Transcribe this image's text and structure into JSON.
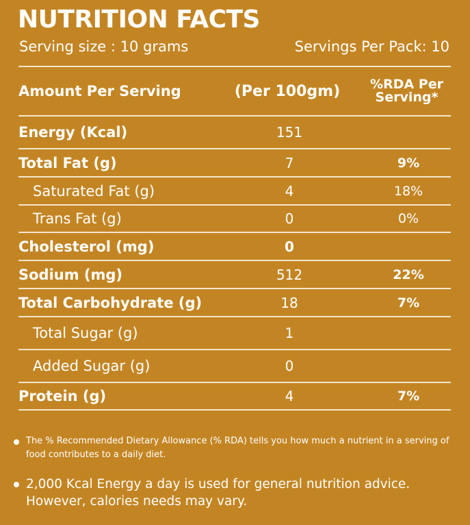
{
  "title": "NUTRITION FACTS",
  "serving_size": "Serving size : 10 grams",
  "servings_per_pack": "Servings Per Pack: 10",
  "header": {
    "amount": "Amount Per Serving",
    "per100": "(Per 100gm)",
    "rda": "%RDA Per Serving*"
  },
  "rows": [
    {
      "name": "Energy (Kcal)",
      "value": "151",
      "rda": ""
    },
    {
      "name": "Total Fat (g)",
      "value": "7",
      "rda": "9%"
    },
    {
      "name": "Saturated Fat (g)",
      "value": "4",
      "rda": "18%"
    },
    {
      "name": "Trans Fat (g)",
      "value": "0",
      "rda": "0%"
    },
    {
      "name": "Cholesterol (mg)",
      "value": "0",
      "rda": ""
    },
    {
      "name": "Sodium  (mg)",
      "value": "512",
      "rda": "22%"
    },
    {
      "name": "Total Carbohydrate (g)",
      "value": "18",
      "rda": "7%"
    },
    {
      "name": "Total Sugar (g)",
      "value": "1",
      "rda": ""
    },
    {
      "name": "Added Sugar (g)",
      "value": "0",
      "rda": ""
    },
    {
      "name": "Protein (g)",
      "value": "4",
      "rda": "7%"
    }
  ],
  "notes": [
    "The % Recommended Dietary Allowance (% RDA) tells you how much a nutrient in a serving of food contributes to a daily diet.",
    "2,000 Kcal Energy a day is used for general nutrition advice. However, calories needs may vary."
  ],
  "colors": {
    "background": "#C38523",
    "text": "#FFFFFF"
  }
}
